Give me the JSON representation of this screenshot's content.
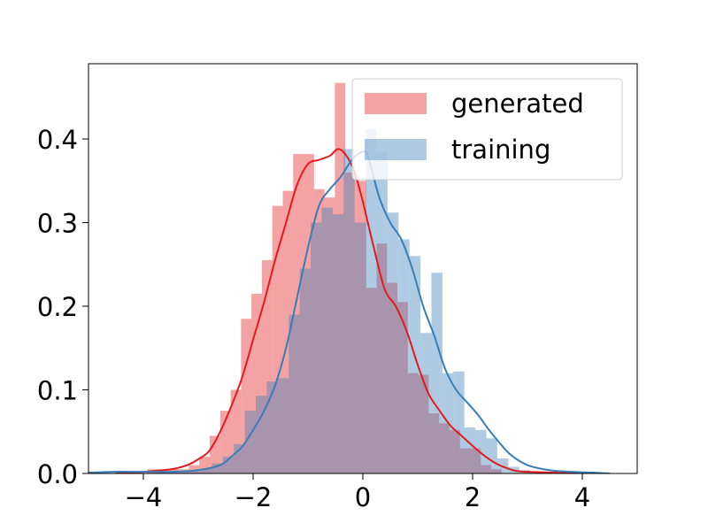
{
  "chart_data": {
    "type": "bar",
    "subtype": "overlaid histograms with density (KDE) curves",
    "xlim": [
      -5,
      5
    ],
    "ylim": [
      0,
      0.49
    ],
    "xticks": [
      -4,
      -2,
      0,
      2,
      4
    ],
    "xtick_labels": [
      "−4",
      "−2",
      "0",
      "2",
      "4"
    ],
    "yticks": [
      0.0,
      0.1,
      0.2,
      0.3,
      0.4
    ],
    "ytick_labels": [
      "0.0",
      "0.1",
      "0.2",
      "0.3",
      "0.4"
    ],
    "grid": false,
    "legend_position": "top-right",
    "title": "",
    "xlabel": "",
    "ylabel": "",
    "series": [
      {
        "name": "generated",
        "bar_color": "#e41a1c",
        "bar_opacity": 0.4,
        "line_color": "#e41a1c",
        "bins": [
          {
            "x0": -3.93,
            "x1": -3.74,
            "y": 0.005
          },
          {
            "x0": -3.74,
            "x1": -3.55,
            "y": 0.005
          },
          {
            "x0": -3.55,
            "x1": -3.36,
            "y": 0.005
          },
          {
            "x0": -3.36,
            "x1": -3.17,
            "y": 0.005
          },
          {
            "x0": -3.17,
            "x1": -2.98,
            "y": 0.01
          },
          {
            "x0": -2.98,
            "x1": -2.79,
            "y": 0.02
          },
          {
            "x0": -2.79,
            "x1": -2.6,
            "y": 0.045
          },
          {
            "x0": -2.6,
            "x1": -2.41,
            "y": 0.075
          },
          {
            "x0": -2.41,
            "x1": -2.22,
            "y": 0.1
          },
          {
            "x0": -2.22,
            "x1": -2.03,
            "y": 0.185
          },
          {
            "x0": -2.03,
            "x1": -1.84,
            "y": 0.215
          },
          {
            "x0": -1.84,
            "x1": -1.65,
            "y": 0.255
          },
          {
            "x0": -1.65,
            "x1": -1.46,
            "y": 0.32
          },
          {
            "x0": -1.46,
            "x1": -1.27,
            "y": 0.338
          },
          {
            "x0": -1.27,
            "x1": -1.08,
            "y": 0.382
          },
          {
            "x0": -1.08,
            "x1": -0.89,
            "y": 0.382
          },
          {
            "x0": -0.89,
            "x1": -0.7,
            "y": 0.34
          },
          {
            "x0": -0.7,
            "x1": -0.51,
            "y": 0.33
          },
          {
            "x0": -0.51,
            "x1": -0.32,
            "y": 0.467
          },
          {
            "x0": -0.32,
            "x1": -0.13,
            "y": 0.36
          },
          {
            "x0": -0.13,
            "x1": 0.06,
            "y": 0.35
          },
          {
            "x0": 0.06,
            "x1": 0.25,
            "y": 0.222
          },
          {
            "x0": 0.25,
            "x1": 0.44,
            "y": 0.275
          },
          {
            "x0": 0.44,
            "x1": 0.63,
            "y": 0.228
          },
          {
            "x0": 0.63,
            "x1": 0.82,
            "y": 0.205
          },
          {
            "x0": 0.82,
            "x1": 1.01,
            "y": 0.12
          },
          {
            "x0": 1.01,
            "x1": 1.2,
            "y": 0.118
          },
          {
            "x0": 1.2,
            "x1": 1.39,
            "y": 0.072
          },
          {
            "x0": 1.39,
            "x1": 1.58,
            "y": 0.06
          },
          {
            "x0": 1.58,
            "x1": 1.77,
            "y": 0.052
          },
          {
            "x0": 1.77,
            "x1": 1.96,
            "y": 0.03
          },
          {
            "x0": 1.96,
            "x1": 2.15,
            "y": 0.03
          },
          {
            "x0": 2.15,
            "x1": 2.34,
            "y": 0.01
          },
          {
            "x0": 2.34,
            "x1": 2.53,
            "y": 0.005
          }
        ],
        "density": {
          "x": [
            -4.5,
            -4.0,
            -3.5,
            -3.2,
            -3.0,
            -2.8,
            -2.6,
            -2.4,
            -2.2,
            -2.0,
            -1.8,
            -1.6,
            -1.4,
            -1.2,
            -1.0,
            -0.8,
            -0.6,
            -0.45,
            -0.3,
            -0.15,
            0.0,
            0.2,
            0.4,
            0.6,
            0.8,
            1.0,
            1.2,
            1.4,
            1.6,
            1.8,
            2.0,
            2.2,
            2.4,
            2.6,
            2.8,
            3.0,
            3.5,
            4.0
          ],
          "y": [
            0.0,
            0.002,
            0.005,
            0.01,
            0.017,
            0.027,
            0.05,
            0.08,
            0.115,
            0.16,
            0.205,
            0.255,
            0.3,
            0.345,
            0.37,
            0.375,
            0.38,
            0.388,
            0.38,
            0.36,
            0.325,
            0.27,
            0.22,
            0.2,
            0.17,
            0.13,
            0.095,
            0.075,
            0.057,
            0.045,
            0.033,
            0.022,
            0.013,
            0.007,
            0.003,
            0.002,
            0.001,
            0.0
          ]
        }
      },
      {
        "name": "training",
        "bar_color": "#377eb8",
        "bar_opacity": 0.4,
        "line_color": "#377eb8",
        "bins": [
          {
            "x0": -3.75,
            "x1": -3.55,
            "y": 0.002
          },
          {
            "x0": -3.55,
            "x1": -3.35,
            "y": 0.002
          },
          {
            "x0": -3.35,
            "x1": -3.15,
            "y": 0.003
          },
          {
            "x0": -3.15,
            "x1": -2.95,
            "y": 0.003
          },
          {
            "x0": -2.95,
            "x1": -2.75,
            "y": 0.005
          },
          {
            "x0": -2.75,
            "x1": -2.55,
            "y": 0.012
          },
          {
            "x0": -2.55,
            "x1": -2.35,
            "y": 0.02
          },
          {
            "x0": -2.35,
            "x1": -2.15,
            "y": 0.035
          },
          {
            "x0": -2.15,
            "x1": -1.95,
            "y": 0.075
          },
          {
            "x0": -1.95,
            "x1": -1.75,
            "y": 0.093
          },
          {
            "x0": -1.75,
            "x1": -1.55,
            "y": 0.11
          },
          {
            "x0": -1.55,
            "x1": -1.35,
            "y": 0.114
          },
          {
            "x0": -1.35,
            "x1": -1.15,
            "y": 0.19
          },
          {
            "x0": -1.15,
            "x1": -0.95,
            "y": 0.245
          },
          {
            "x0": -0.95,
            "x1": -0.75,
            "y": 0.3
          },
          {
            "x0": -0.75,
            "x1": -0.55,
            "y": 0.318
          },
          {
            "x0": -0.55,
            "x1": -0.35,
            "y": 0.31
          },
          {
            "x0": -0.35,
            "x1": -0.15,
            "y": 0.388
          },
          {
            "x0": -0.15,
            "x1": 0.05,
            "y": 0.3
          },
          {
            "x0": 0.05,
            "x1": 0.25,
            "y": 0.412
          },
          {
            "x0": 0.25,
            "x1": 0.45,
            "y": 0.385
          },
          {
            "x0": 0.45,
            "x1": 0.65,
            "y": 0.312
          },
          {
            "x0": 0.65,
            "x1": 0.85,
            "y": 0.28
          },
          {
            "x0": 0.85,
            "x1": 1.05,
            "y": 0.26
          },
          {
            "x0": 1.05,
            "x1": 1.25,
            "y": 0.168
          },
          {
            "x0": 1.25,
            "x1": 1.45,
            "y": 0.24
          },
          {
            "x0": 1.45,
            "x1": 1.65,
            "y": 0.12
          },
          {
            "x0": 1.65,
            "x1": 1.85,
            "y": 0.122
          },
          {
            "x0": 1.85,
            "x1": 2.05,
            "y": 0.055
          },
          {
            "x0": 2.05,
            "x1": 2.25,
            "y": 0.052
          },
          {
            "x0": 2.25,
            "x1": 2.45,
            "y": 0.042
          },
          {
            "x0": 2.45,
            "x1": 2.65,
            "y": 0.018
          },
          {
            "x0": 2.65,
            "x1": 2.85,
            "y": 0.008
          },
          {
            "x0": 2.85,
            "x1": 3.05,
            "y": 0.004
          },
          {
            "x0": 3.05,
            "x1": 3.25,
            "y": 0.002
          }
        ],
        "density": {
          "x": [
            -5.0,
            -4.5,
            -4.0,
            -3.5,
            -3.0,
            -2.6,
            -2.4,
            -2.2,
            -2.0,
            -1.8,
            -1.6,
            -1.4,
            -1.2,
            -1.0,
            -0.8,
            -0.6,
            -0.4,
            -0.2,
            0.0,
            0.1,
            0.3,
            0.5,
            0.7,
            0.9,
            1.1,
            1.3,
            1.5,
            1.7,
            1.9,
            2.1,
            2.3,
            2.5,
            2.7,
            3.0,
            3.4,
            3.8,
            4.2,
            4.5
          ],
          "y": [
            0.001,
            0.002,
            0.002,
            0.002,
            0.004,
            0.01,
            0.02,
            0.032,
            0.052,
            0.075,
            0.105,
            0.15,
            0.21,
            0.27,
            0.32,
            0.34,
            0.355,
            0.375,
            0.385,
            0.378,
            0.33,
            0.3,
            0.28,
            0.245,
            0.2,
            0.165,
            0.125,
            0.1,
            0.085,
            0.07,
            0.052,
            0.036,
            0.022,
            0.01,
            0.004,
            0.002,
            0.001,
            0.0
          ]
        }
      }
    ]
  }
}
